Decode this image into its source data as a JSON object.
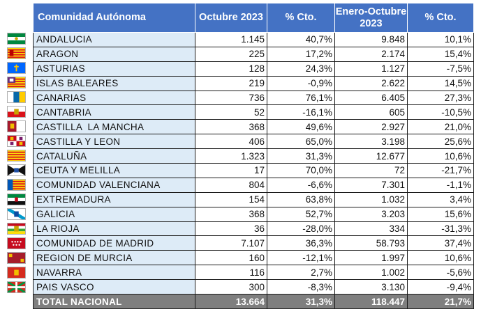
{
  "header": {
    "region": "Comunidad Autónoma",
    "oct": "Octubre 2023",
    "oct_pct": "% Cto.",
    "ytd": "Enero-Octubre 2023",
    "ytd_pct": "% Cto."
  },
  "rows": [
    {
      "name": "ANDALUCIA",
      "oct": "1.145",
      "oct_pct": "40,7%",
      "ytd": "9.848",
      "ytd_pct": "10,1%",
      "flag": "andalucia-flag-icon"
    },
    {
      "name": "ARAGON",
      "oct": "225",
      "oct_pct": "17,2%",
      "ytd": "2.174",
      "ytd_pct": "15,4%",
      "flag": "aragon-flag-icon"
    },
    {
      "name": "ASTURIAS",
      "oct": "128",
      "oct_pct": "24,3%",
      "ytd": "1.127",
      "ytd_pct": "-7,5%",
      "flag": "asturias-flag-icon"
    },
    {
      "name": "ISLAS BALEARES",
      "oct": "219",
      "oct_pct": "-0,9%",
      "ytd": "2.622",
      "ytd_pct": "14,5%",
      "flag": "baleares-flag-icon"
    },
    {
      "name": "CANARIAS",
      "oct": "736",
      "oct_pct": "76,1%",
      "ytd": "6.405",
      "ytd_pct": "27,3%",
      "flag": "canarias-flag-icon"
    },
    {
      "name": "CANTABRIA",
      "oct": "52",
      "oct_pct": "-16,1%",
      "ytd": "605",
      "ytd_pct": "-10,5%",
      "flag": "cantabria-flag-icon"
    },
    {
      "name": "CASTILLA  LA MANCHA",
      "oct": "368",
      "oct_pct": "49,6%",
      "ytd": "2.927",
      "ytd_pct": "21,0%",
      "flag": "castilla-la-mancha-flag-icon"
    },
    {
      "name": "CASTILLA Y LEON",
      "oct": "406",
      "oct_pct": "65,0%",
      "ytd": "3.198",
      "ytd_pct": "25,6%",
      "flag": "castilla-y-leon-flag-icon"
    },
    {
      "name": "CATALUÑA",
      "oct": "1.323",
      "oct_pct": "31,3%",
      "ytd": "12.677",
      "ytd_pct": "10,6%",
      "flag": "cataluna-flag-icon"
    },
    {
      "name": "CEUTA Y MELILLA",
      "oct": "17",
      "oct_pct": "70,0%",
      "ytd": "72",
      "ytd_pct": "-21,7%",
      "flag": "ceuta-flag-icon"
    },
    {
      "name": "COMUNIDAD VALENCIANA",
      "oct": "804",
      "oct_pct": "-6,6%",
      "ytd": "7.301",
      "ytd_pct": "-1,1%",
      "flag": "valencia-flag-icon"
    },
    {
      "name": "EXTREMADURA",
      "oct": "154",
      "oct_pct": "63,8%",
      "ytd": "1.032",
      "ytd_pct": "3,4%",
      "flag": "extremadura-flag-icon"
    },
    {
      "name": "GALICIA",
      "oct": "368",
      "oct_pct": "52,7%",
      "ytd": "3.203",
      "ytd_pct": "15,6%",
      "flag": "galicia-flag-icon"
    },
    {
      "name": "LA RIOJA",
      "oct": "36",
      "oct_pct": "-28,0%",
      "ytd": "334",
      "ytd_pct": "-31,3%",
      "flag": "la-rioja-flag-icon"
    },
    {
      "name": "COMUNIDAD DE MADRID",
      "oct": "7.107",
      "oct_pct": "36,3%",
      "ytd": "58.793",
      "ytd_pct": "37,4%",
      "flag": "madrid-flag-icon"
    },
    {
      "name": "REGION DE MURCIA",
      "oct": "160",
      "oct_pct": "-12,1%",
      "ytd": "1.997",
      "ytd_pct": "10,6%",
      "flag": "murcia-flag-icon"
    },
    {
      "name": "NAVARRA",
      "oct": "116",
      "oct_pct": "2,7%",
      "ytd": "1.002",
      "ytd_pct": "-5,6%",
      "flag": "navarra-flag-icon"
    },
    {
      "name": "PAIS VASCO",
      "oct": "300",
      "oct_pct": "-8,3%",
      "ytd": "3.130",
      "ytd_pct": "-9,4%",
      "flag": "pais-vasco-flag-icon"
    }
  ],
  "total": {
    "name": "TOTAL NACIONAL",
    "oct": "13.664",
    "oct_pct": "31,3%",
    "ytd": "118.447",
    "ytd_pct": "21,7%"
  },
  "colors": {
    "header_bg": "#4472c4",
    "name_bg": "#ddebf7",
    "total_bg": "#7f7f7f"
  }
}
